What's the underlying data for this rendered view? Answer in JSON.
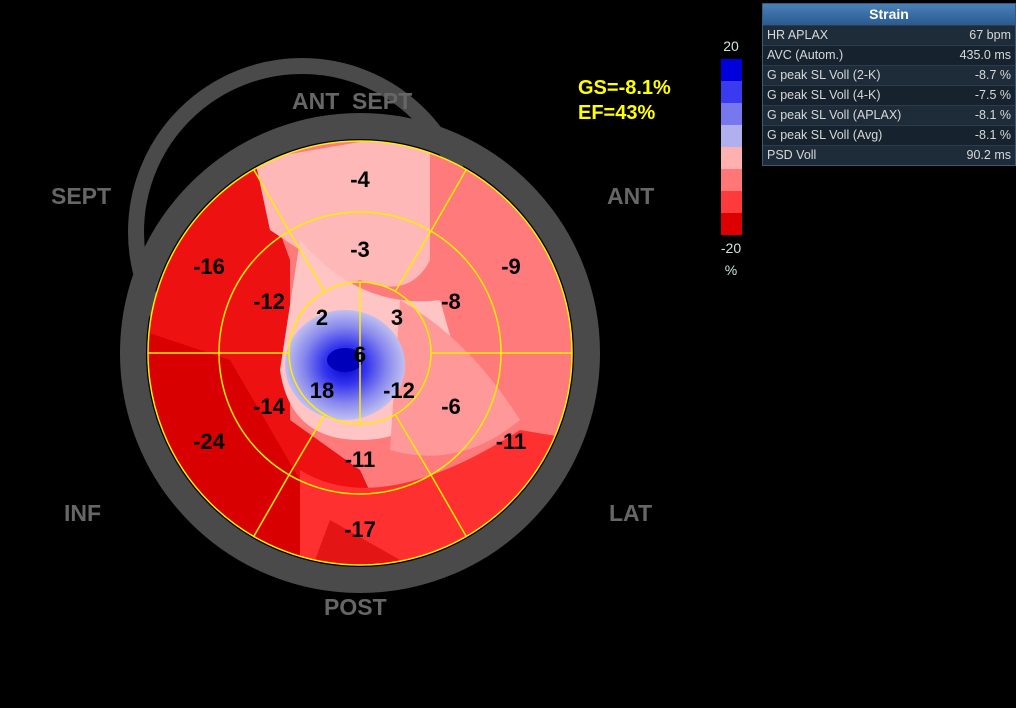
{
  "region_labels": {
    "ant_sept": "ANT  SEPT",
    "sept": "SEPT",
    "ant": "ANT",
    "inf": "INF",
    "lat": "LAT",
    "post": "POST"
  },
  "global": {
    "gs": "GS=-8.1%",
    "ef": "EF=43%"
  },
  "segments": {
    "basal": [
      {
        "id": "basal-ant-sept",
        "value": "-4"
      },
      {
        "id": "basal-ant",
        "value": "-9"
      },
      {
        "id": "basal-lat",
        "value": "-11"
      },
      {
        "id": "basal-post",
        "value": "-17"
      },
      {
        "id": "basal-inf",
        "value": "-24"
      },
      {
        "id": "basal-sept",
        "value": "-16"
      }
    ],
    "mid": [
      {
        "id": "mid-ant-sept",
        "value": "-3"
      },
      {
        "id": "mid-ant",
        "value": "-8"
      },
      {
        "id": "mid-lat",
        "value": "-6"
      },
      {
        "id": "mid-post",
        "value": "-11"
      },
      {
        "id": "mid-inf",
        "value": "-14"
      },
      {
        "id": "mid-sept",
        "value": "-12"
      }
    ],
    "apical": [
      {
        "id": "apical-ant",
        "value": "3"
      },
      {
        "id": "apical-lat",
        "value": "-12"
      },
      {
        "id": "apical-inf",
        "value": "18"
      },
      {
        "id": "apical-sept",
        "value": "2"
      }
    ],
    "apex": {
      "id": "apex",
      "value": "6"
    }
  },
  "colorbar": {
    "max_label": "20",
    "min_label": "-20",
    "unit": "%",
    "colors": [
      "#0000dd",
      "#3a3aee",
      "#7777ee",
      "#b0b0ee",
      "#ffb0b0",
      "#ff7777",
      "#ff3a3a",
      "#dd0000"
    ]
  },
  "strain_panel": {
    "title": "Strain",
    "rows": [
      {
        "label": "HR APLAX",
        "value": "67 bpm"
      },
      {
        "label": "AVC (Autom.)",
        "value": "435.0 ms"
      },
      {
        "label": "G peak SL Voll (2-K)",
        "value": "-8.7 %"
      },
      {
        "label": "G peak SL Voll (4-K)",
        "value": "-7.5 %"
      },
      {
        "label": "G peak SL Voll (APLAX)",
        "value": "-8.1 %"
      },
      {
        "label": "G peak SL Voll (Avg)",
        "value": "-8.1 %"
      },
      {
        "label": "PSD Voll",
        "value": "90.2 ms"
      }
    ]
  },
  "colors": {
    "ring": "#4a4a4a",
    "grid": "#ffee00",
    "label": "#666666",
    "highlight": "#ffff00"
  }
}
